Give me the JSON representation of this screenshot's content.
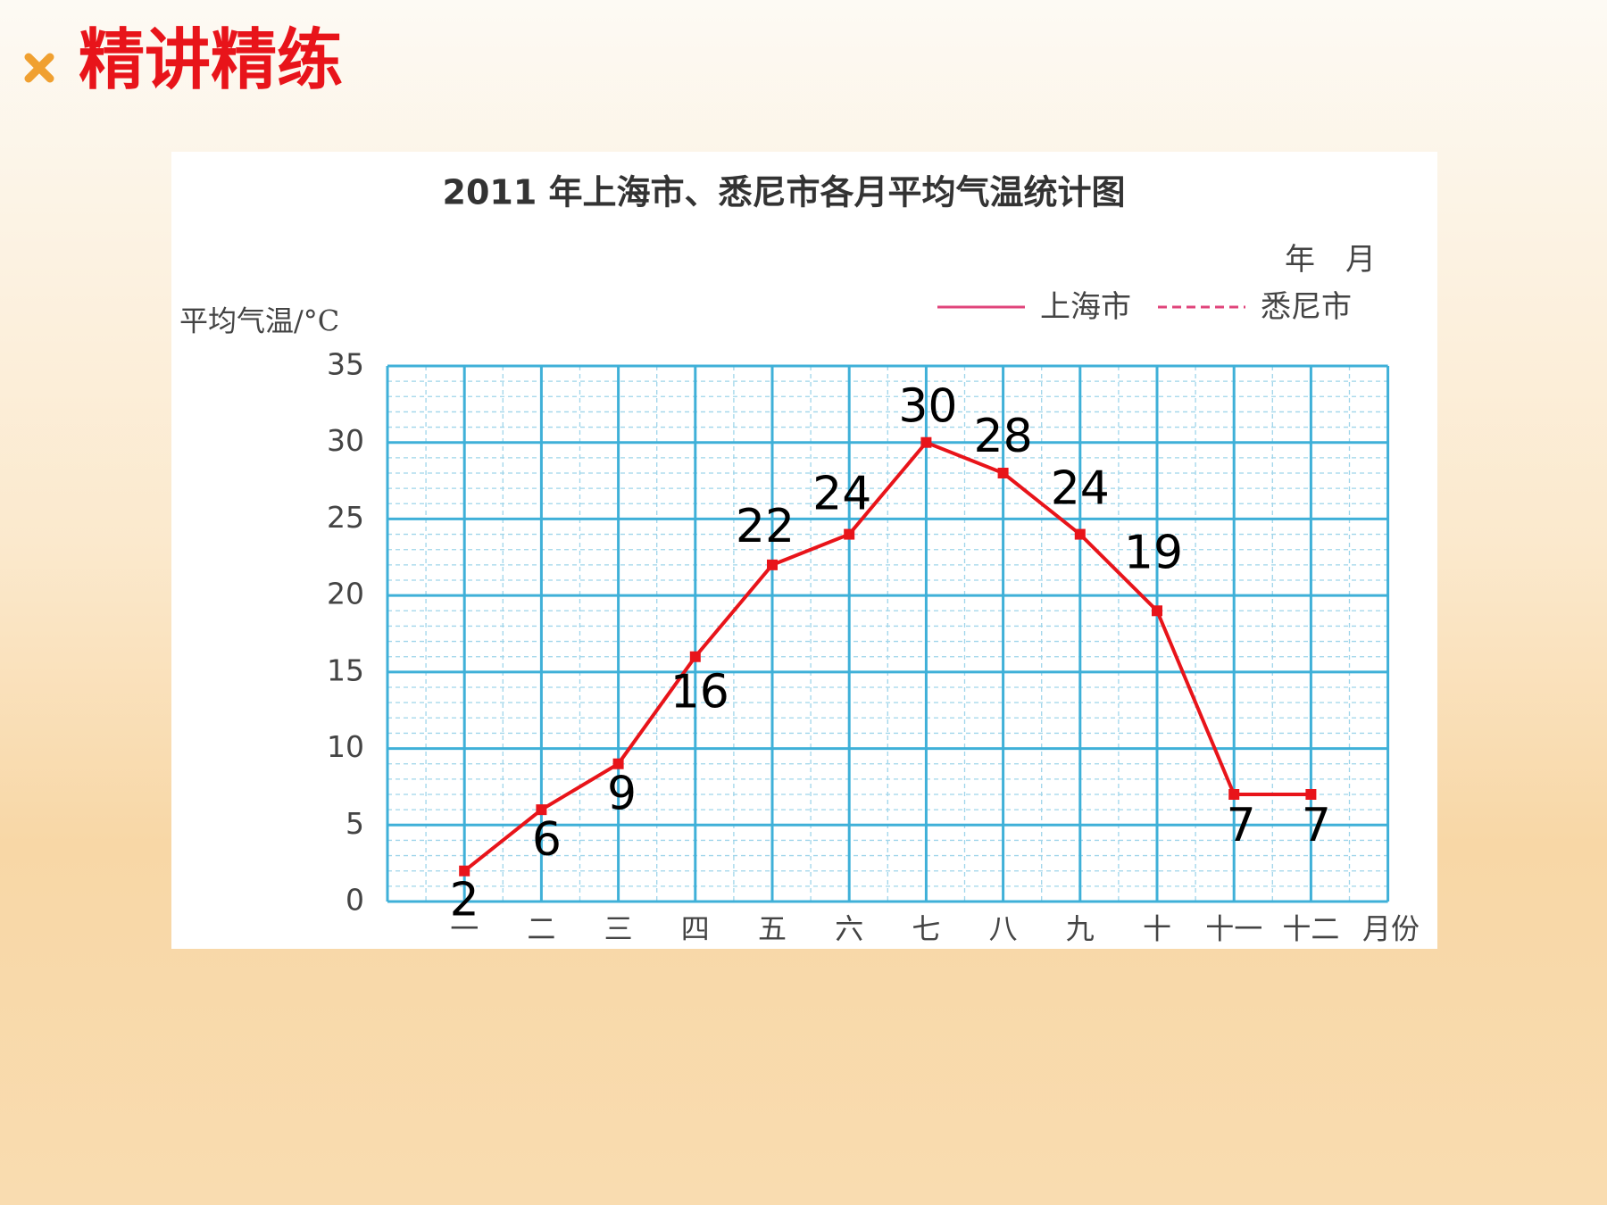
{
  "header": {
    "title": "精讲精练"
  },
  "chart_data": {
    "type": "line",
    "title": "2011 年上海市、悉尼市各月平均气温统计图",
    "date_label": "年　月",
    "y_label": "平均气温/°C",
    "x_label": "月份",
    "categories": [
      "一",
      "二",
      "三",
      "四",
      "五",
      "六",
      "七",
      "八",
      "九",
      "十",
      "十一",
      "十二"
    ],
    "series": [
      {
        "name": "上海市",
        "color": "#e8141a",
        "legend_color": "#e0457b",
        "dashed": false,
        "values": [
          2,
          6,
          9,
          16,
          22,
          24,
          30,
          28,
          24,
          19,
          7,
          7
        ]
      },
      {
        "name": "悉尼市",
        "color": "#e0457b",
        "legend_color": "#e0457b",
        "dashed": true,
        "values": [
          null,
          null,
          null,
          null,
          null,
          null,
          null,
          null,
          null,
          null,
          null,
          null
        ]
      }
    ],
    "ylim": [
      0,
      35
    ],
    "yticks": [
      0,
      5,
      10,
      15,
      20,
      25,
      30,
      35
    ],
    "grid": true,
    "minor_grid_step": 1,
    "value_labels_shown": true
  }
}
